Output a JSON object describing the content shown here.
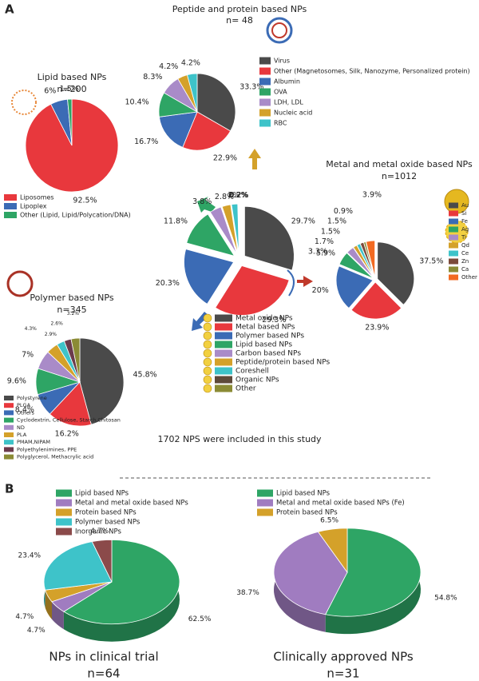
{
  "panel_labels": [
    "A",
    "B"
  ],
  "chart_data": [
    {
      "type": "pie",
      "title": "Peptide and protein based NPs",
      "subtitle": "n= 48",
      "labels": [
        "Virus",
        "Other (Magnetosomes, Silk, Nanozyme, Personalized protein)",
        "Albumin",
        "OVA",
        "LDH, LDL",
        "Nucleic acid",
        "RBC"
      ],
      "values": [
        33.3,
        22.9,
        16.7,
        10.4,
        8.3,
        4.2,
        4.2
      ],
      "value_labels": [
        "33.3%",
        "22.9%",
        "16.7%",
        "10.4%",
        "8.3%",
        "4.2%",
        "4.2%"
      ],
      "colors": [
        "#4a4a4a",
        "#e8383d",
        "#3b6bb5",
        "#2ea565",
        "#a98bc8",
        "#d4a12a",
        "#3ec3c9"
      ]
    },
    {
      "type": "pie",
      "title": "Lipid based NPs",
      "subtitle": "n=200",
      "labels": [
        "Liposomes",
        "Lipoplex",
        "Other (Lipid, Lipid/Polycation/DNA)"
      ],
      "values": [
        92.5,
        6,
        1.5
      ],
      "value_labels": [
        "92.5%",
        "6%",
        "1.5%"
      ],
      "colors": [
        "#e8383d",
        "#3b6bb5",
        "#2ea565"
      ]
    },
    {
      "type": "pie",
      "caption": "1702 NPS were included in this study",
      "labels": [
        "Metal oxide NPs",
        "Metal based NPs",
        "Polymer based NPs",
        "Lipid based NPs",
        "Carbon based NPs",
        "Peptide/protein based NPs",
        "Coreshell",
        "Organic NPs",
        "Other"
      ],
      "values": [
        29.7,
        29.3,
        20.3,
        11.8,
        3.8,
        2.8,
        2,
        0.2,
        0.2
      ],
      "value_labels": [
        "29.7%",
        "29.3%",
        "20.3%",
        "11.8%",
        "3.8%",
        "2.8%",
        "2%",
        "0.2%",
        "0.2%"
      ],
      "colors": [
        "#4a4a4a",
        "#e8383d",
        "#3b6bb5",
        "#2ea565",
        "#a98bc8",
        "#d4a12a",
        "#3ec3c9",
        "#5e4a3a",
        "#8b8b35"
      ]
    },
    {
      "type": "pie",
      "title": "Metal and metal oxide based NPs",
      "subtitle": "n=1012",
      "labels": [
        "Au",
        "Si",
        "Fe",
        "Ag",
        "Ti",
        "Qd",
        "Ce",
        "Zn",
        "Ca",
        "Other"
      ],
      "values": [
        37.5,
        23.9,
        20,
        5.9,
        3.3,
        1.7,
        1.5,
        1.5,
        0.9,
        3.9
      ],
      "value_labels": [
        "37.5%",
        "23.9%",
        "20%",
        "5.9%",
        "3.3%",
        "1.7%",
        "1.5%",
        "1.5%",
        "0.9%",
        "3.9%"
      ],
      "colors": [
        "#4a4a4a",
        "#e8383d",
        "#3b6bb5",
        "#2ea565",
        "#a98bc8",
        "#d4a12a",
        "#3ec3c9",
        "#7b4a3a",
        "#8b8b35",
        "#f26a22"
      ]
    },
    {
      "type": "pie",
      "title": "Polymer based NPs",
      "subtitle": "n=345",
      "labels": [
        "Polystyrene",
        "PLGA",
        "Others",
        "Cyclodextrin, Cellulose, Starch,Chitosan",
        "ND",
        "PLA",
        "PMAM,NIPAM",
        "Polyethylenimines, PPE",
        "Polyglycerol, Methacrylic acid"
      ],
      "values": [
        45.8,
        16.2,
        8.4,
        9.6,
        7,
        4.3,
        2.9,
        2.6,
        3.2
      ],
      "value_labels": [
        "45.8%",
        "16.2%",
        "8.4%",
        "9.6%",
        "7%",
        "4.3%",
        "2.9%",
        "2.6%",
        "3.2%"
      ],
      "colors": [
        "#4a4a4a",
        "#e8383d",
        "#3b6bb5",
        "#2ea565",
        "#a98bc8",
        "#d4a12a",
        "#3ec3c9",
        "#6b3b4c",
        "#8b8b35"
      ]
    },
    {
      "type": "pie3d",
      "title": "NPs in clinical trial",
      "subtitle": "n=64",
      "labels": [
        "Lipid based NPs",
        "Metal and metal oxide based NPs",
        "Protein based NPs",
        "Polymer based NPs",
        "Inorganic NPs"
      ],
      "values": [
        62.5,
        4.7,
        4.7,
        23.4,
        4.7
      ],
      "value_labels": [
        "62.5%",
        "4.7%",
        "4.7%",
        "23.4%",
        "4.7%"
      ],
      "colors": [
        "#2ea565",
        "#a07cc0",
        "#d4a12a",
        "#3ec3c9",
        "#8b4a4a"
      ]
    },
    {
      "type": "pie3d",
      "title": "Clinically approved NPs",
      "subtitle": "n=31",
      "labels": [
        "Lipid based NPs",
        "Metal and metal oxide based NPs (Fe)",
        "Protein based NPs"
      ],
      "values": [
        54.8,
        38.7,
        6.5
      ],
      "value_labels": [
        "54.8%",
        "38.7%",
        "6.5%"
      ],
      "colors": [
        "#2ea565",
        "#a07cc0",
        "#d4a12a"
      ]
    }
  ]
}
